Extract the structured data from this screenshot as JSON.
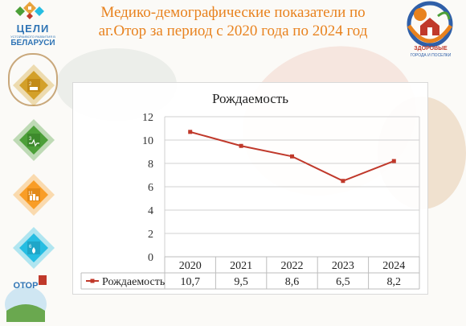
{
  "title_line1": "Медико-демографические показатели по",
  "title_line2": "аг.Отор за период с 2020 года по 2024 год",
  "logo_left": {
    "line1": "ЦЕЛИ",
    "line2": "УСТОЙЧИВОГО РАЗВИТИЯ В",
    "line3": "БЕЛАРУСИ"
  },
  "logo_right": {
    "line1": "ЗДОРОВЫЕ",
    "line2": "ГОРОДА И ПОСЕЛКИ"
  },
  "logo_otor": "ОТОР",
  "sdg_numbers": [
    "2",
    "3",
    "11",
    "6"
  ],
  "colors": {
    "title": "#e8821e",
    "series": "#c0392b",
    "sdg2": "#d3a029",
    "sdg3": "#4c9f38",
    "sdg11": "#f99d26",
    "sdg6": "#26bde2"
  },
  "chart_data": {
    "type": "line",
    "title": "Рождаемость",
    "categories": [
      "2020",
      "2021",
      "2022",
      "2023",
      "2024"
    ],
    "series": [
      {
        "name": "Рождаемость",
        "values": [
          10.7,
          9.5,
          8.6,
          6.5,
          8.2
        ]
      }
    ],
    "value_labels": [
      "10,7",
      "9,5",
      "8,6",
      "6,5",
      "8,2"
    ],
    "y_ticks": [
      "0",
      "2",
      "4",
      "6",
      "8",
      "10",
      "12"
    ],
    "ylim": [
      0,
      12
    ],
    "grid": true,
    "legend": "data-table-below"
  }
}
